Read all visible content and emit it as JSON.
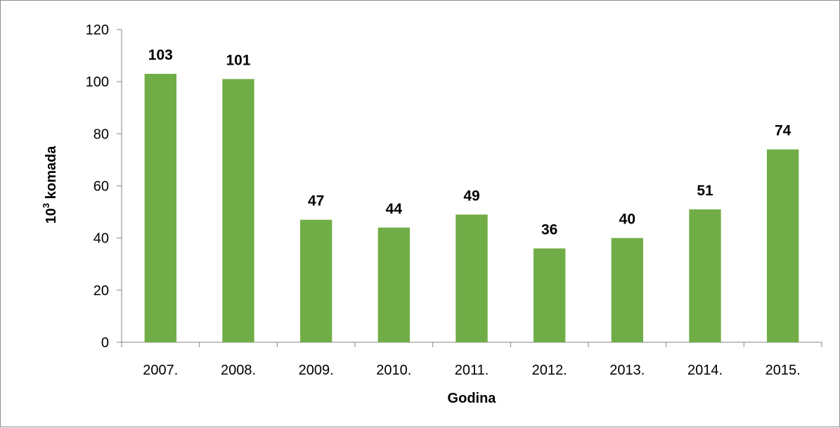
{
  "chart_data": {
    "type": "bar",
    "categories": [
      "2007.",
      "2008.",
      "2009.",
      "2010.",
      "2011.",
      "2012.",
      "2013.",
      "2014.",
      "2015."
    ],
    "values": [
      103,
      101,
      47,
      44,
      49,
      36,
      40,
      51,
      74
    ],
    "data_labels": [
      "103",
      "101",
      "47",
      "44",
      "49",
      "36",
      "40",
      "51",
      "74"
    ],
    "xlabel": "Godina",
    "ylabel_base": "10",
    "ylabel_exp": "3",
    "ylabel_rest": " komada",
    "ylim": [
      0,
      120
    ],
    "yticks": [
      0,
      20,
      40,
      60,
      80,
      100,
      120
    ],
    "ytick_labels": [
      "0",
      "20",
      "40",
      "60",
      "80",
      "100",
      "120"
    ],
    "bar_color": "#70ad47",
    "grid": false,
    "legend": false
  }
}
